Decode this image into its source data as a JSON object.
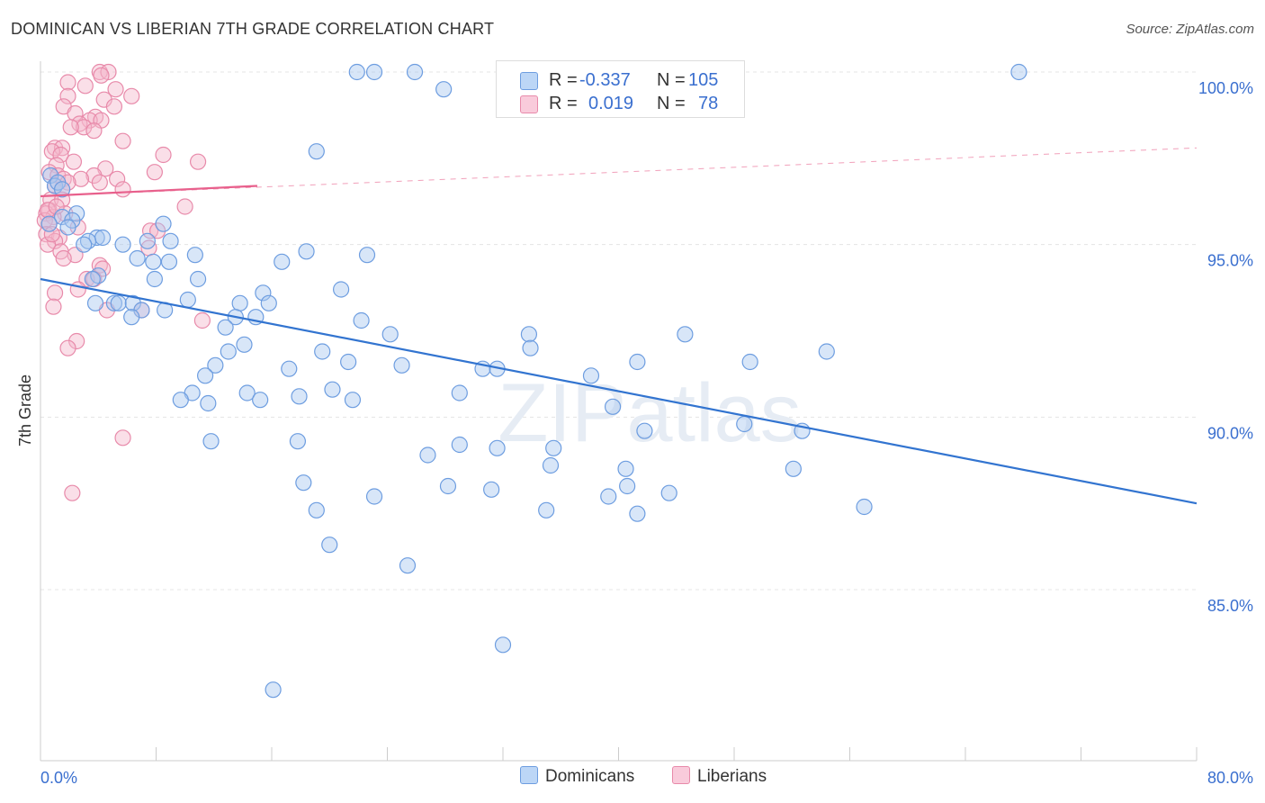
{
  "title": "DOMINICAN VS LIBERIAN 7TH GRADE CORRELATION CHART",
  "source": "Source: ZipAtlas.com",
  "watermark": "ZIPatlas",
  "colors": {
    "blue_fill": "#a8c8f0",
    "blue_stroke": "#6d9de0",
    "blue_line": "#3274d0",
    "pink_fill": "#f5b8cc",
    "pink_stroke": "#e88aaa",
    "pink_line": "#e8608c",
    "axis_label": "#3a6fcf",
    "grid": "#e4e4e4"
  },
  "legend_top": {
    "blue": {
      "r_label": "R =",
      "r_value": "-0.337",
      "n_label": "N =",
      "n_value": "105"
    },
    "pink": {
      "r_label": "R =",
      "r_value": "0.019",
      "n_label": "N =",
      "n_value": "78"
    }
  },
  "legend_bottom": {
    "blue": "Dominicans",
    "pink": "Liberians"
  },
  "chart_data": {
    "type": "scatter",
    "title": "DOMINICAN VS LIBERIAN 7TH GRADE CORRELATION CHART",
    "xlabel": "",
    "ylabel": "7th Grade",
    "xlim": [
      0,
      80
    ],
    "ylim": [
      80.3,
      101.1
    ],
    "x_tick_labels": [
      "0.0%",
      "80.0%"
    ],
    "y_ticks": [
      85,
      90,
      95,
      100
    ],
    "y_tick_labels": [
      "85.0%",
      "90.0%",
      "95.0%",
      "100.0%"
    ],
    "grid": true,
    "legend_position": "top-center",
    "series": [
      {
        "name": "Dominicans",
        "r": -0.337,
        "n": 105,
        "trend": {
          "x": [
            0,
            80
          ],
          "y": [
            94.0,
            87.5
          ]
        },
        "points": [
          [
            21.9,
            100.0
          ],
          [
            23.1,
            100.0
          ],
          [
            25.9,
            100.0
          ],
          [
            27.9,
            99.5
          ],
          [
            67.7,
            100.0
          ],
          [
            19.1,
            97.7
          ],
          [
            0.7,
            97.0
          ],
          [
            1.0,
            96.7
          ],
          [
            1.2,
            96.8
          ],
          [
            2.5,
            95.9
          ],
          [
            1.5,
            95.8
          ],
          [
            2.2,
            95.7
          ],
          [
            0.6,
            95.6
          ],
          [
            8.5,
            95.6
          ],
          [
            1.9,
            95.5
          ],
          [
            3.9,
            95.2
          ],
          [
            4.3,
            95.2
          ],
          [
            3.3,
            95.1
          ],
          [
            7.4,
            95.1
          ],
          [
            9.0,
            95.1
          ],
          [
            5.7,
            95.0
          ],
          [
            3.0,
            95.0
          ],
          [
            18.4,
            94.8
          ],
          [
            22.6,
            94.7
          ],
          [
            10.7,
            94.7
          ],
          [
            6.7,
            94.6
          ],
          [
            7.8,
            94.5
          ],
          [
            8.9,
            94.5
          ],
          [
            16.7,
            94.5
          ],
          [
            4.0,
            94.1
          ],
          [
            7.9,
            94.0
          ],
          [
            10.9,
            94.0
          ],
          [
            3.6,
            94.0
          ],
          [
            20.8,
            93.7
          ],
          [
            15.4,
            93.6
          ],
          [
            10.2,
            93.4
          ],
          [
            13.8,
            93.3
          ],
          [
            15.8,
            93.3
          ],
          [
            5.1,
            93.3
          ],
          [
            5.4,
            93.3
          ],
          [
            6.4,
            93.3
          ],
          [
            8.6,
            93.1
          ],
          [
            7.0,
            93.1
          ],
          [
            6.3,
            92.9
          ],
          [
            13.5,
            92.9
          ],
          [
            14.9,
            92.9
          ],
          [
            22.2,
            92.8
          ],
          [
            12.8,
            92.6
          ],
          [
            24.2,
            92.4
          ],
          [
            33.8,
            92.4
          ],
          [
            44.6,
            92.4
          ],
          [
            14.1,
            92.1
          ],
          [
            33.9,
            92.0
          ],
          [
            13.0,
            91.9
          ],
          [
            19.5,
            91.9
          ],
          [
            54.4,
            91.9
          ],
          [
            21.3,
            91.6
          ],
          [
            41.3,
            91.6
          ],
          [
            49.1,
            91.6
          ],
          [
            25.0,
            91.5
          ],
          [
            17.2,
            91.4
          ],
          [
            30.6,
            91.4
          ],
          [
            31.6,
            91.4
          ],
          [
            12.1,
            91.5
          ],
          [
            38.1,
            91.2
          ],
          [
            11.4,
            91.2
          ],
          [
            20.2,
            90.8
          ],
          [
            10.5,
            90.7
          ],
          [
            14.3,
            90.7
          ],
          [
            17.9,
            90.6
          ],
          [
            29.0,
            90.7
          ],
          [
            9.7,
            90.5
          ],
          [
            21.6,
            90.5
          ],
          [
            15.2,
            90.5
          ],
          [
            11.6,
            90.4
          ],
          [
            39.6,
            90.3
          ],
          [
            48.7,
            89.8
          ],
          [
            41.8,
            89.6
          ],
          [
            52.7,
            89.6
          ],
          [
            11.8,
            89.3
          ],
          [
            17.8,
            89.3
          ],
          [
            29.0,
            89.2
          ],
          [
            31.6,
            89.1
          ],
          [
            35.5,
            89.1
          ],
          [
            26.8,
            88.9
          ],
          [
            35.3,
            88.6
          ],
          [
            40.5,
            88.5
          ],
          [
            52.1,
            88.5
          ],
          [
            18.2,
            88.1
          ],
          [
            28.2,
            88.0
          ],
          [
            31.2,
            87.9
          ],
          [
            40.6,
            88.0
          ],
          [
            43.5,
            87.8
          ],
          [
            23.1,
            87.7
          ],
          [
            39.3,
            87.7
          ],
          [
            57.0,
            87.4
          ],
          [
            19.1,
            87.3
          ],
          [
            35.0,
            87.3
          ],
          [
            41.3,
            87.2
          ],
          [
            20.0,
            86.3
          ],
          [
            25.4,
            85.7
          ],
          [
            32.0,
            83.4
          ],
          [
            16.1,
            82.1
          ],
          [
            1.5,
            96.6
          ],
          [
            3.8,
            93.3
          ]
        ]
      },
      {
        "name": "Liberians",
        "r": 0.019,
        "n": 78,
        "trend": {
          "x": [
            0,
            15
          ],
          "y": [
            96.4,
            96.7
          ]
        },
        "trend_extended": {
          "x": [
            0,
            80
          ],
          "y": [
            96.4,
            97.8
          ]
        },
        "points": [
          [
            4.1,
            100.0
          ],
          [
            4.7,
            100.0
          ],
          [
            4.2,
            99.9
          ],
          [
            5.2,
            99.5
          ],
          [
            1.9,
            99.7
          ],
          [
            3.1,
            99.6
          ],
          [
            1.9,
            99.3
          ],
          [
            6.3,
            99.3
          ],
          [
            4.4,
            99.2
          ],
          [
            1.6,
            99.0
          ],
          [
            5.1,
            99.0
          ],
          [
            2.4,
            98.8
          ],
          [
            3.8,
            98.7
          ],
          [
            3.4,
            98.6
          ],
          [
            4.2,
            98.6
          ],
          [
            2.7,
            98.5
          ],
          [
            3.0,
            98.4
          ],
          [
            2.1,
            98.4
          ],
          [
            3.7,
            98.3
          ],
          [
            5.7,
            98.0
          ],
          [
            1.0,
            97.8
          ],
          [
            1.5,
            97.8
          ],
          [
            0.8,
            97.7
          ],
          [
            1.4,
            97.6
          ],
          [
            8.5,
            97.6
          ],
          [
            10.9,
            97.4
          ],
          [
            2.3,
            97.4
          ],
          [
            1.1,
            97.3
          ],
          [
            4.5,
            97.2
          ],
          [
            7.9,
            97.1
          ],
          [
            0.6,
            97.1
          ],
          [
            1.2,
            97.0
          ],
          [
            3.7,
            97.0
          ],
          [
            1.6,
            96.9
          ],
          [
            2.8,
            96.9
          ],
          [
            5.3,
            96.9
          ],
          [
            1.9,
            96.8
          ],
          [
            4.1,
            96.8
          ],
          [
            1.0,
            96.7
          ],
          [
            1.5,
            96.6
          ],
          [
            5.7,
            96.6
          ],
          [
            0.7,
            96.3
          ],
          [
            1.5,
            96.3
          ],
          [
            10.0,
            96.1
          ],
          [
            0.6,
            96.0
          ],
          [
            0.4,
            95.9
          ],
          [
            1.7,
            95.9
          ],
          [
            0.9,
            95.8
          ],
          [
            0.3,
            95.7
          ],
          [
            0.6,
            95.6
          ],
          [
            2.6,
            95.5
          ],
          [
            7.6,
            95.4
          ],
          [
            8.1,
            95.4
          ],
          [
            0.4,
            95.3
          ],
          [
            1.3,
            95.2
          ],
          [
            1.0,
            95.1
          ],
          [
            0.5,
            95.0
          ],
          [
            7.5,
            94.9
          ],
          [
            1.4,
            94.8
          ],
          [
            2.4,
            94.7
          ],
          [
            1.6,
            94.6
          ],
          [
            4.1,
            94.4
          ],
          [
            4.3,
            94.3
          ],
          [
            3.2,
            94.0
          ],
          [
            3.7,
            94.0
          ],
          [
            2.6,
            93.7
          ],
          [
            1.0,
            93.6
          ],
          [
            0.9,
            93.2
          ],
          [
            4.6,
            93.1
          ],
          [
            7.0,
            93.1
          ],
          [
            11.2,
            92.8
          ],
          [
            2.5,
            92.2
          ],
          [
            1.9,
            92.0
          ],
          [
            5.7,
            89.4
          ],
          [
            2.2,
            87.8
          ],
          [
            0.5,
            96.0
          ],
          [
            0.8,
            95.3
          ],
          [
            1.1,
            96.1
          ]
        ]
      }
    ]
  }
}
